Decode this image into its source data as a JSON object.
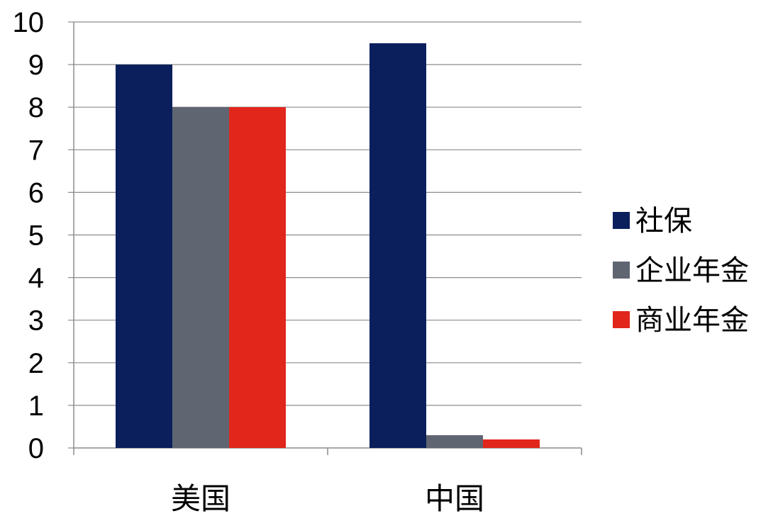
{
  "chart_data": {
    "type": "bar",
    "title": "",
    "xlabel": "",
    "ylabel": "",
    "categories": [
      "美国",
      "中国"
    ],
    "ylim": [
      0,
      10
    ],
    "yticks": [
      0,
      1,
      2,
      3,
      4,
      5,
      6,
      7,
      8,
      9,
      10
    ],
    "grid": true,
    "legend_position": "right",
    "series": [
      {
        "name": "社保",
        "color": "#0a1f5c",
        "values": [
          9,
          9.5
        ]
      },
      {
        "name": "企业年金",
        "color": "#5f6672",
        "values": [
          8,
          0.3
        ]
      },
      {
        "name": "商业年金",
        "color": "#e1261c",
        "values": [
          8,
          0.2
        ]
      }
    ]
  }
}
